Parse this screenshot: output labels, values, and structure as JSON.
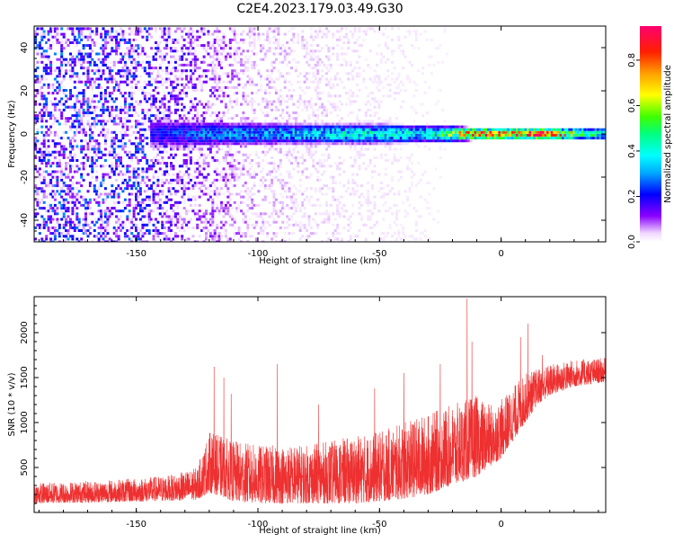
{
  "title": "C2E4.2023.179.03.49.G30",
  "colorbar": {
    "label": "Normalized spectral amplitude",
    "ticks": [
      0.0,
      0.2,
      0.4,
      0.6,
      0.8
    ],
    "tick_labels": [
      "0.0",
      "0.2",
      "0.4",
      "0.6",
      "0.8"
    ],
    "range": [
      0,
      0.95
    ]
  },
  "chart_data": [
    {
      "type": "heatmap",
      "xlabel": "Height of straight line (km)",
      "ylabel": "Frequency (Hz)",
      "xlim": [
        -192,
        43
      ],
      "ylim": [
        -50,
        50
      ],
      "xticks": [
        -150,
        -100,
        -50,
        0
      ],
      "xtick_labels": [
        "-150",
        "-100",
        "-50",
        "0"
      ],
      "yticks": [
        -40,
        -20,
        0,
        20,
        40
      ],
      "ytick_labels": [
        "-40",
        "-20",
        "0",
        "20",
        "40"
      ],
      "band": {
        "center_hz": 0,
        "start_km": -145,
        "end_km": 43,
        "halfwidth_hz": [
          [
            -145,
            7
          ],
          [
            -120,
            6
          ],
          [
            -80,
            5
          ],
          [
            -50,
            5
          ],
          [
            -20,
            4
          ],
          [
            -10,
            3
          ],
          [
            43,
            3
          ]
        ],
        "peak_amplitude": [
          [
            -145,
            0.2
          ],
          [
            -120,
            0.3
          ],
          [
            -90,
            0.35
          ],
          [
            -60,
            0.45
          ],
          [
            -30,
            0.4
          ],
          [
            -12,
            0.85
          ],
          [
            0,
            0.9
          ],
          [
            15,
            0.95
          ],
          [
            43,
            0.4
          ]
        ]
      },
      "noise_amplitude": [
        [
          -192,
          0.22
        ],
        [
          -150,
          0.2
        ],
        [
          -125,
          0.12
        ],
        [
          -100,
          0.05
        ],
        [
          -60,
          0.03
        ],
        [
          -20,
          0.01
        ],
        [
          43,
          0.0
        ]
      ]
    },
    {
      "type": "line",
      "xlabel": "Height of straight line (km)",
      "ylabel": "SNR (10 * v/v)",
      "xlim": [
        -192,
        43
      ],
      "ylim": [
        0,
        2400
      ],
      "xticks": [
        -150,
        -100,
        -50,
        0
      ],
      "xtick_labels": [
        "-150",
        "-100",
        "-50",
        "0"
      ],
      "yticks": [
        500,
        1000,
        1500,
        2000
      ],
      "ytick_labels": [
        "500",
        "1000",
        "1500",
        "2000"
      ],
      "series": [
        {
          "color": "#ee3030",
          "envelope_x": [
            -192,
            -170,
            -150,
            -135,
            -125,
            -120,
            -115,
            -110,
            -100,
            -90,
            -80,
            -70,
            -60,
            -50,
            -40,
            -30,
            -20,
            -15,
            -10,
            -5,
            0,
            5,
            10,
            15,
            20,
            30,
            43
          ],
          "envelope_low": [
            100,
            110,
            120,
            130,
            140,
            220,
            180,
            120,
            100,
            100,
            100,
            100,
            100,
            120,
            150,
            200,
            300,
            350,
            400,
            500,
            600,
            800,
            1000,
            1200,
            1300,
            1400,
            1450
          ],
          "envelope_high": [
            330,
            350,
            380,
            420,
            500,
            900,
            850,
            800,
            750,
            750,
            750,
            800,
            850,
            900,
            1000,
            1100,
            1200,
            1250,
            1300,
            1200,
            1250,
            1400,
            1550,
            1600,
            1650,
            1700,
            1720
          ],
          "spikes": [
            {
              "x": -118,
              "y": 1620
            },
            {
              "x": -114,
              "y": 1500
            },
            {
              "x": -111,
              "y": 1320
            },
            {
              "x": -92,
              "y": 1650
            },
            {
              "x": -75,
              "y": 1200
            },
            {
              "x": -52,
              "y": 1380
            },
            {
              "x": -40,
              "y": 1550
            },
            {
              "x": -25,
              "y": 1650
            },
            {
              "x": -14,
              "y": 2380
            },
            {
              "x": -12,
              "y": 1900
            },
            {
              "x": 8,
              "y": 1950
            },
            {
              "x": 11,
              "y": 2100
            },
            {
              "x": 17,
              "y": 1750
            }
          ]
        }
      ]
    }
  ]
}
